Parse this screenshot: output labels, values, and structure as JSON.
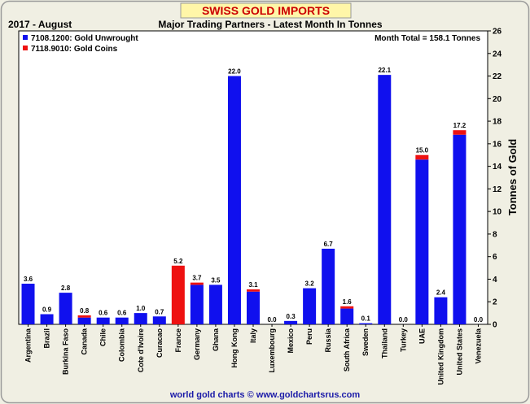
{
  "header": {
    "title": "SWISS GOLD IMPORTS",
    "date": "2017 - August",
    "subtitle": "Major Trading Partners - Latest Month In Tonnes"
  },
  "legend": {
    "items": [
      {
        "label": "7108.1200: Gold Unwrought",
        "color": "#1010ee"
      },
      {
        "label": "7118.9010: Gold Coins",
        "color": "#ee1111"
      }
    ],
    "position": "top-left"
  },
  "summary": {
    "month_total": "Month Total = 158.1 Tonnes"
  },
  "footer": {
    "credit": "world gold charts © www.goldchartsrus.com"
  },
  "colors": {
    "title_text": "#cc0000",
    "title_bg": "#fff6a8",
    "frame_bg": "#f0efe3",
    "unwrought": "#1010ee",
    "coins": "#ee1111",
    "footer_text": "#1a1aa8"
  },
  "chart_data": {
    "type": "bar",
    "stacked": true,
    "categories": [
      "Argentina",
      "Brazil",
      "Burkina Faso",
      "Canada",
      "Chile",
      "Colombia",
      "Cote d'Ivoire",
      "Curacao",
      "France",
      "Germany",
      "Ghana",
      "Hong Kong",
      "Italy",
      "Luxembourg",
      "Mexico",
      "Peru",
      "Russia",
      "South Africa",
      "Sweden",
      "Thailand",
      "Turkey",
      "UAE",
      "United Kingdom",
      "United States",
      "Venezuela"
    ],
    "series": [
      {
        "name": "7108.1200: Gold Unwrought",
        "values": [
          3.6,
          0.9,
          2.8,
          0.6,
          0.6,
          0.6,
          1.0,
          0.7,
          0.0,
          3.5,
          3.5,
          22.0,
          2.9,
          0.0,
          0.3,
          3.2,
          6.7,
          1.4,
          0.1,
          22.1,
          0.0,
          14.6,
          2.4,
          16.8,
          0.0
        ]
      },
      {
        "name": "7118.9010: Gold Coins",
        "values": [
          0.0,
          0.0,
          0.0,
          0.2,
          0.0,
          0.0,
          0.0,
          0.0,
          5.2,
          0.2,
          0.0,
          0.0,
          0.2,
          0.0,
          0.0,
          0.0,
          0.0,
          0.2,
          0.0,
          0.0,
          0.0,
          0.4,
          0.0,
          0.4,
          0.0
        ]
      }
    ],
    "data_labels": [
      "3.6",
      "0.9",
      "2.8",
      "0.8",
      "0.6",
      "0.6",
      "1.0",
      "0.7",
      "5.2",
      "3.7",
      "3.5",
      "22.0",
      "3.1",
      "0.0",
      "0.3",
      "3.2",
      "6.7",
      "1.6",
      "0.1",
      "22.1",
      "0.0",
      "15.0",
      "2.4",
      "17.2",
      "0.0"
    ],
    "ylabel": "Tonnes of Gold",
    "ylim": [
      0,
      26
    ],
    "yticks": [
      0,
      2,
      4,
      6,
      8,
      10,
      12,
      14,
      16,
      18,
      20,
      22,
      24,
      26
    ],
    "y_axis_side": "right",
    "grid": false
  }
}
